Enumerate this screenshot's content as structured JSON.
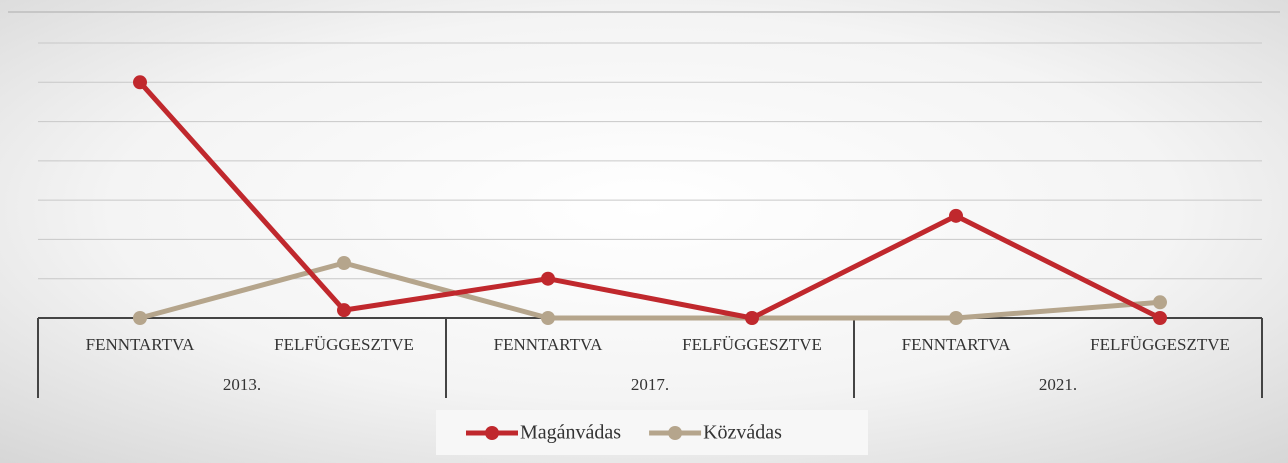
{
  "chart_data": {
    "type": "line",
    "categories": [
      "FENNTARTVA",
      "FELFÜGGESZTVE",
      "FENNTARTVA",
      "FELFÜGGESZTVE",
      "FENNTARTVA",
      "FELFÜGGESZTVE"
    ],
    "groups": [
      "2013.",
      "2017.",
      "2021."
    ],
    "series": [
      {
        "name": "Magánvádas",
        "color": "#c0282d",
        "values": [
          6.0,
          0.2,
          1.0,
          0,
          2.6,
          0
        ]
      },
      {
        "name": "Közvádas",
        "color": "#b5a58c",
        "values": [
          0,
          1.4,
          0,
          0,
          0,
          0.4
        ]
      }
    ],
    "ylim": [
      0,
      7
    ],
    "yticks": [
      0,
      1,
      2,
      3,
      4,
      5,
      6,
      7
    ],
    "grid": true,
    "legend": "bottom"
  }
}
